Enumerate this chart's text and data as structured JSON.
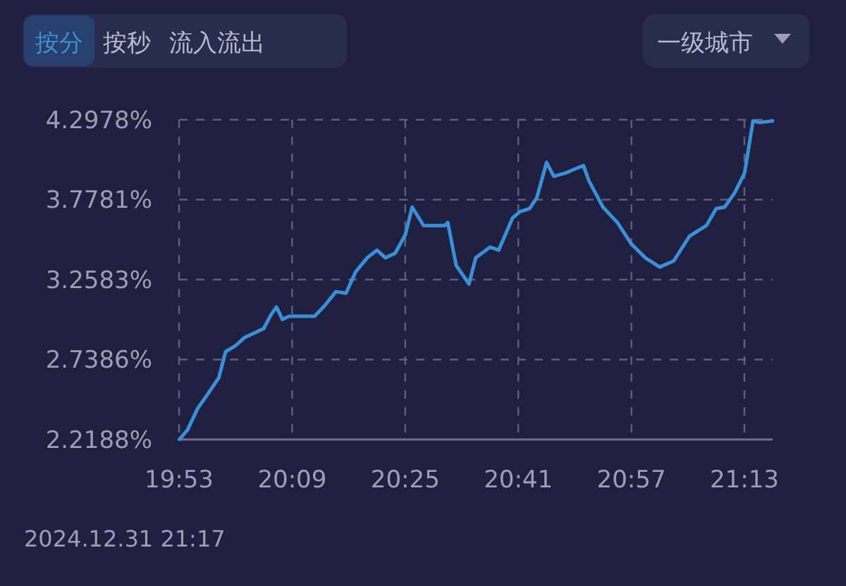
{
  "chart_data": {
    "type": "line",
    "annotations": [
      "按分",
      "按秒",
      "流入流出",
      "一级城市",
      "2024.12.31 21:17"
    ],
    "x": [
      19.884,
      19.903,
      19.927,
      19.95,
      19.977,
      19.993,
      20.017,
      20.037,
      20.067,
      20.083,
      20.1,
      20.113,
      20.127,
      20.143,
      20.183,
      20.203,
      20.227,
      20.253,
      20.277,
      20.3,
      20.327,
      20.35,
      20.37,
      20.393,
      20.417,
      20.433,
      20.46,
      20.51,
      20.517,
      20.527,
      20.537,
      20.567,
      20.583,
      20.617,
      20.637,
      20.67,
      20.687,
      20.71,
      20.727,
      20.75,
      20.767,
      20.793,
      20.837,
      20.85,
      20.883,
      20.917,
      20.95,
      20.983,
      21.017,
      21.05,
      21.087,
      21.127,
      21.15,
      21.17,
      21.193,
      21.217,
      21.237,
      21.253,
      21.283
    ],
    "series": [
      {
        "color": "#3b8fd9",
        "values": [
          2.22,
          2.28,
          2.42,
          2.51,
          2.62,
          2.79,
          2.83,
          2.88,
          2.92,
          2.94,
          3.03,
          3.08,
          3.0,
          3.02,
          3.02,
          3.02,
          3.09,
          3.18,
          3.17,
          3.31,
          3.4,
          3.45,
          3.4,
          3.43,
          3.55,
          3.73,
          3.61,
          3.61,
          3.63,
          3.49,
          3.35,
          3.23,
          3.4,
          3.47,
          3.45,
          3.66,
          3.7,
          3.72,
          3.79,
          4.02,
          3.93,
          3.95,
          4.0,
          3.9,
          3.73,
          3.63,
          3.49,
          3.4,
          3.34,
          3.38,
          3.54,
          3.61,
          3.72,
          3.73,
          3.82,
          3.95,
          4.29,
          4.28,
          4.29
        ]
      }
    ],
    "xlim": [
      19.8833,
      21.2833
    ],
    "xticks": [
      {
        "value": 19.8833,
        "label": "19:53"
      },
      {
        "value": 20.15,
        "label": "20:09"
      },
      {
        "value": 20.4167,
        "label": "20:25"
      },
      {
        "value": 20.6833,
        "label": "20:41"
      },
      {
        "value": 20.95,
        "label": "20:57"
      },
      {
        "value": 21.2167,
        "label": "21:13"
      }
    ],
    "ylim": [
      2.2188,
      4.2978
    ],
    "yticks": [
      {
        "value": 2.2188,
        "label": "2.2188%"
      },
      {
        "value": 2.7386,
        "label": "2.7386%"
      },
      {
        "value": 3.2583,
        "label": "3.2583%"
      },
      {
        "value": 3.7781,
        "label": "3.7781%"
      },
      {
        "value": 4.2978,
        "label": "4.2978%"
      }
    ],
    "grid": true,
    "line_style": "solid",
    "marker": "none"
  }
}
